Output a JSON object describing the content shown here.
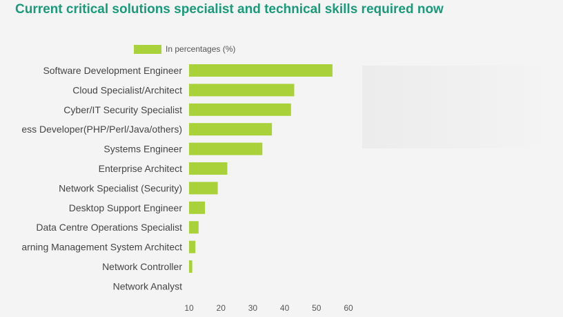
{
  "page": {
    "title": "Current critical solutions specialist and technical skills required now"
  },
  "colors": {
    "bar": "#a9d23a",
    "title": "#1a9a7a",
    "label": "#444444",
    "tick": "#555555"
  },
  "chart_data": {
    "type": "bar",
    "orientation": "horizontal",
    "title": "Current critical solutions specialist and technical skills required now",
    "legend": {
      "label": "In percentages (%)",
      "placement": "top"
    },
    "categories": [
      "Software Development Engineer",
      "Cloud Specialist/Architect",
      "Cyber/IT Security Specialist",
      "Business Developer(PHP/Perl/Java/others)",
      "Systems Engineer",
      "Enterprise Architect",
      "Network Specialist (Security)",
      "Desktop Support Engineer",
      "Data Centre Operations Specialist",
      "Learning Management System Architect",
      "Network Controller",
      "Network Analyst"
    ],
    "series": [
      {
        "name": "In percentages (%)",
        "values": [
          55,
          43,
          42,
          36,
          33,
          22,
          19,
          15,
          13,
          12,
          11,
          10
        ]
      }
    ],
    "xlim": [
      10,
      60
    ],
    "xticks": [
      10,
      20,
      30,
      40,
      50,
      60
    ],
    "grid": false
  }
}
